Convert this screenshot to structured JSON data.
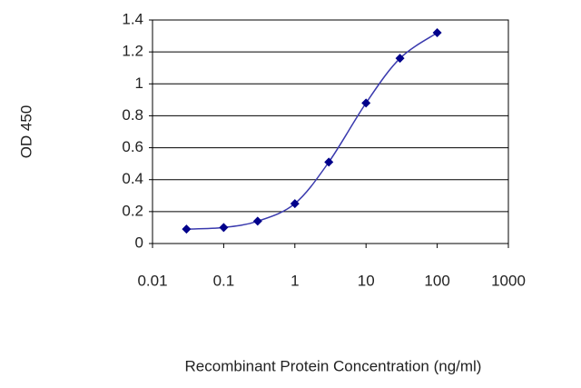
{
  "chart_data": {
    "type": "line",
    "x_label": "Recombinant Protein Concentration (ng/ml)",
    "y_label": "OD 450",
    "x": [
      0.03,
      0.1,
      0.3,
      1,
      3,
      10,
      30,
      100
    ],
    "series": [
      {
        "color": "#00008b",
        "line_color": "#3a3aae",
        "values": [
          0.09,
          0.1,
          0.14,
          0.25,
          0.51,
          0.88,
          1.16,
          1.32
        ]
      }
    ],
    "xlim": [
      0.01,
      1000
    ],
    "xticks": [
      0.01,
      0.1,
      1,
      10,
      100,
      1000
    ],
    "xscale": "log",
    "ylim": [
      0,
      1.4
    ],
    "yticks": [
      0,
      0.2,
      0.4,
      0.6,
      0.8,
      1,
      1.2,
      1.4
    ],
    "grid": true
  }
}
